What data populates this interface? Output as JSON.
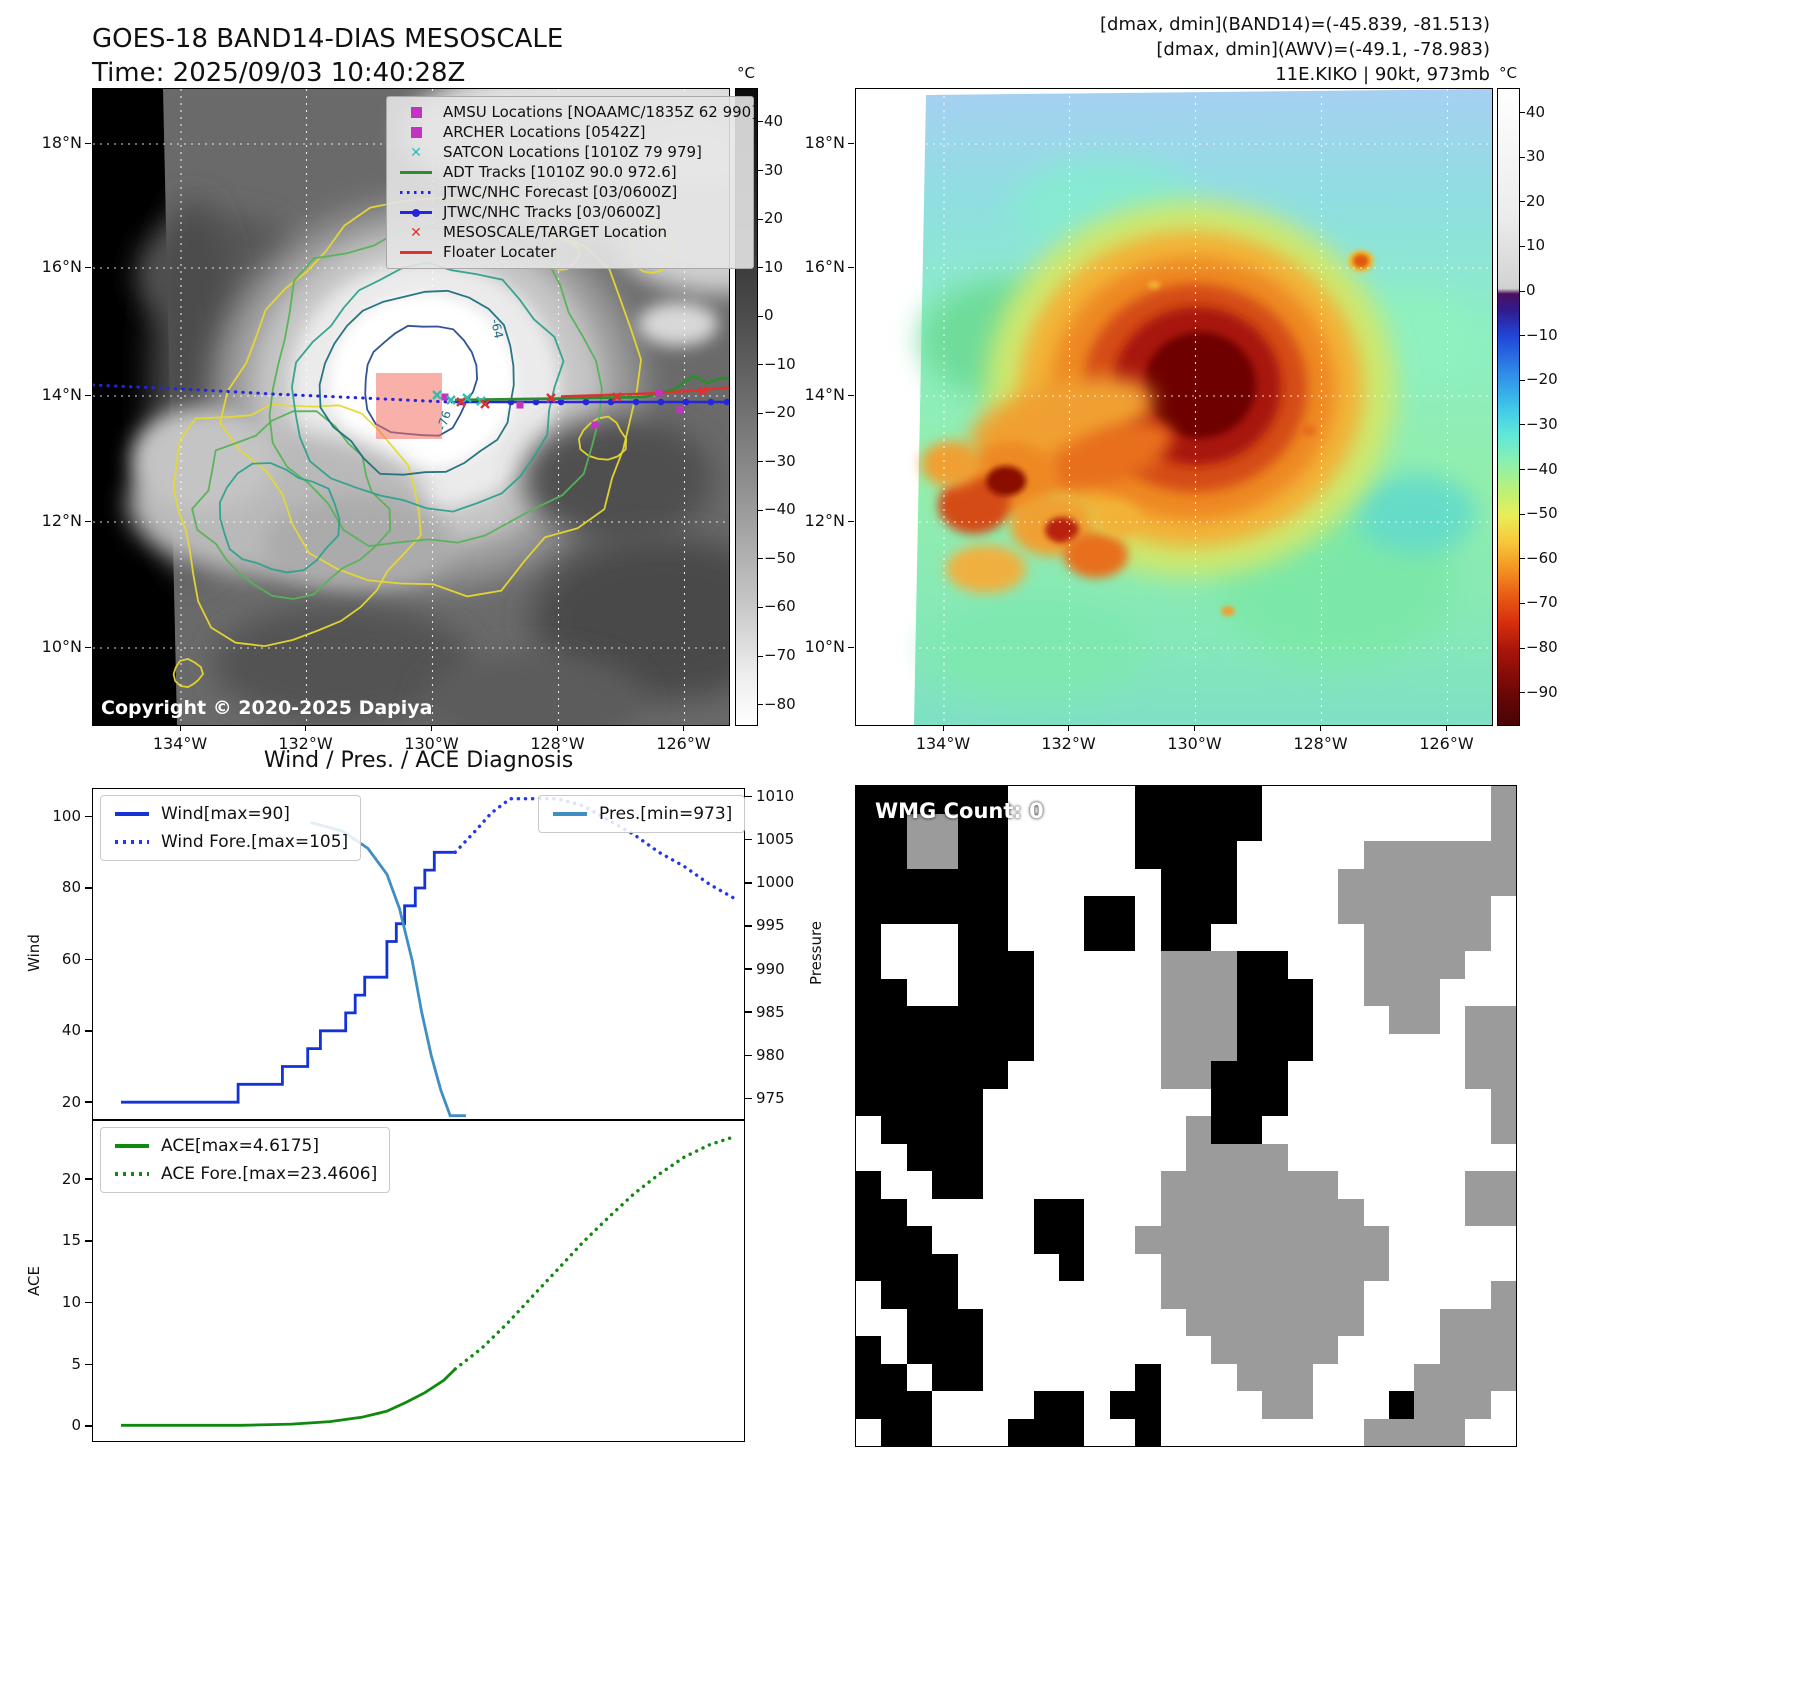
{
  "panel1": {
    "title": "GOES-18 BAND14-DIAS MESOSCALE",
    "subtitle": "Time: 2025/09/03 10:40:28Z",
    "copyright": "Copyright © 2020-2025 Dapiya",
    "x_ticks": [
      "134°W",
      "132°W",
      "130°W",
      "128°W",
      "126°W"
    ],
    "y_ticks": [
      "18°N",
      "16°N",
      "14°N",
      "12°N",
      "10°N"
    ],
    "colorbar": {
      "unit": "°C",
      "ticks": [
        "40",
        "30",
        "20",
        "10",
        "0",
        "−10",
        "−20",
        "−30",
        "−40",
        "−50",
        "−60",
        "−70",
        "−80"
      ]
    },
    "legend": [
      {
        "label": "AMSU Locations [NOAAMC/1835Z 62 990]",
        "marker": "square",
        "color": "#c233c2"
      },
      {
        "label": "ARCHER Locations [0542Z]",
        "marker": "square",
        "color": "#c233c2"
      },
      {
        "label": "SATCON Locations [1010Z 79 979]",
        "marker": "x",
        "color": "#2fbfae"
      },
      {
        "label": "ADT Tracks [1010Z 90.0 972.6]",
        "marker": "line",
        "color": "#2e8b2e"
      },
      {
        "label": "JTWC/NHC Forecast [03/0600Z]",
        "marker": "dotted",
        "color": "#2525dd"
      },
      {
        "label": "JTWC/NHC Tracks [03/0600Z]",
        "marker": "line-dot",
        "color": "#2525dd"
      },
      {
        "label": "MESOSCALE/TARGET Location",
        "marker": "x",
        "color": "#e03030"
      },
      {
        "label": "Floater Locater",
        "marker": "line",
        "color": "#e03030"
      }
    ],
    "contour_labels": [
      {
        "text": "-76"
      },
      {
        "text": "-64"
      }
    ]
  },
  "panel2": {
    "header_lines": [
      "[dmax, dmin](BAND14)=(-45.839, -81.513)",
      "[dmax, dmin](AWV)=(-49.1, -78.983)",
      "11E.KIKO | 90kt, 973mb"
    ],
    "x_ticks": [
      "134°W",
      "132°W",
      "130°W",
      "128°W",
      "126°W"
    ],
    "y_ticks": [
      "18°N",
      "16°N",
      "14°N",
      "12°N",
      "10°N"
    ],
    "colorbar": {
      "unit": "°C",
      "ticks": [
        "40",
        "30",
        "20",
        "10",
        "0",
        "−10",
        "−20",
        "−30",
        "−40",
        "−50",
        "−60",
        "−70",
        "−80",
        "−90"
      ]
    }
  },
  "diagnosis": {
    "title": "Wind / Pres. / ACE Diagnosis",
    "wind_ylabel": "Wind",
    "pressure_ylabel": "Pressure",
    "ace_ylabel": "ACE"
  },
  "wmg": {
    "label": "WMG Count: 0",
    "colors": {
      "#": "#000000",
      "o": "#9b9b9b",
      ".": "#ffffff"
    },
    "grid": [
      "######.....#####.........o",
      "##oo##.....#####.........o",
      "##oo##.....####.....oooooo",
      "######......###....ooooooo",
      "######...##.###....oooooo.",
      "#...##...##.##......ooooo.",
      "#...###.....ooo##...oooo..",
      "##..###.....ooo###..ooo...",
      "#######.....ooo###...oo.oo",
      "#######.....ooo###......oo",
      "######......oo###.......oo",
      "#####.........###........o",
      ".####........o##.........o",
      "..###........oooo.........",
      "#..##.......ooooooo.....oo",
      "##.....##...oooooooo....oo",
      "###....##..oooooooooo.....",
      "####....#...ooooooooo.....",
      ".###........oooooooo.....o",
      "..###........ooooooo...ooo",
      "#.###.........ooooo....ooo",
      "##.##......#...ooo....oooo",
      "###....##.##....oo...#ooo.",
      ".##...###..#........oooo.."
    ]
  },
  "chart_data": [
    {
      "type": "line",
      "title": "Wind / Pres. / ACE Diagnosis (wind & pressure panel)",
      "xlabel": "",
      "ylabel_left": "Wind",
      "ylabel_right": "Pressure",
      "y_left": {
        "min": 15,
        "max": 108,
        "ticks": [
          20,
          40,
          60,
          80,
          100
        ]
      },
      "y_right": {
        "min": 972.5,
        "max": 1011,
        "ticks": [
          975,
          980,
          985,
          990,
          995,
          1000,
          1005,
          1010
        ]
      },
      "x_range": [
        0,
        1
      ],
      "grid": false,
      "series": [
        {
          "name": "Wind[max=90]",
          "axis": "left",
          "style": "solid",
          "color": "#1433d6",
          "x": [
            0.03,
            0.215,
            0.215,
            0.285,
            0.285,
            0.325,
            0.325,
            0.345,
            0.345,
            0.385,
            0.385,
            0.4,
            0.4,
            0.415,
            0.415,
            0.45,
            0.45,
            0.465,
            0.465,
            0.478,
            0.478,
            0.495,
            0.495,
            0.51,
            0.51,
            0.525,
            0.525,
            0.558
          ],
          "y": [
            20,
            20,
            25,
            25,
            30,
            30,
            35,
            35,
            40,
            40,
            45,
            45,
            50,
            50,
            55,
            55,
            65,
            65,
            70,
            70,
            75,
            75,
            80,
            80,
            85,
            85,
            90,
            90
          ]
        },
        {
          "name": "Wind Fore.[max=105]",
          "axis": "left",
          "style": "dotted",
          "color": "#2336f0",
          "x": [
            0.558,
            0.59,
            0.615,
            0.645,
            0.68,
            0.72,
            0.76,
            0.8,
            0.84,
            0.88,
            0.92,
            0.96,
            1.0
          ],
          "y": [
            90,
            96,
            101,
            105,
            105,
            105,
            103,
            99,
            95,
            90,
            86,
            81,
            77
          ]
        },
        {
          "name": "Pres.[min=973]",
          "axis": "right",
          "style": "solid",
          "color": "#3f8ec4",
          "x": [
            0.33,
            0.38,
            0.42,
            0.45,
            0.47,
            0.49,
            0.505,
            0.52,
            0.535,
            0.55,
            0.575
          ],
          "y": [
            1007,
            1006,
            1004,
            1001,
            997,
            991,
            985,
            980,
            976,
            973,
            973
          ]
        }
      ]
    },
    {
      "type": "line",
      "title": "ACE panel",
      "xlabel": "",
      "ylabel": "ACE",
      "y": {
        "min": -1.3,
        "max": 24.8,
        "ticks": [
          0,
          5,
          10,
          15,
          20
        ]
      },
      "x_range": [
        0,
        1
      ],
      "grid": false,
      "series": [
        {
          "name": "ACE[max=4.6175]",
          "style": "solid",
          "color": "#0f8a0f",
          "x": [
            0.03,
            0.22,
            0.3,
            0.36,
            0.41,
            0.45,
            0.48,
            0.51,
            0.54,
            0.558
          ],
          "y": [
            0.05,
            0.05,
            0.15,
            0.35,
            0.7,
            1.2,
            1.9,
            2.7,
            3.7,
            4.62
          ]
        },
        {
          "name": "ACE Fore.[max=23.4606]",
          "style": "dotted",
          "color": "#0f8a0f",
          "x": [
            0.558,
            0.6,
            0.64,
            0.68,
            0.72,
            0.76,
            0.8,
            0.84,
            0.88,
            0.92,
            0.96,
            1.0
          ],
          "y": [
            4.62,
            6.3,
            8.3,
            10.5,
            12.7,
            14.9,
            16.9,
            18.8,
            20.4,
            21.8,
            22.8,
            23.46
          ]
        }
      ]
    }
  ]
}
